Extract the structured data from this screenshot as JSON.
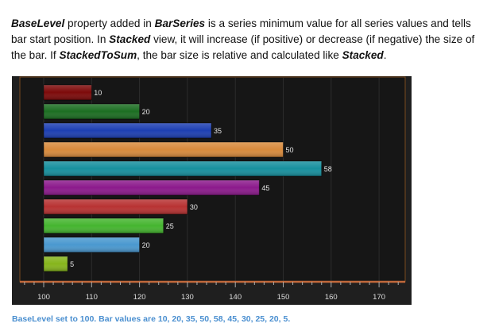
{
  "description": {
    "parts": [
      {
        "text": "BaseLevel",
        "em": true
      },
      {
        "text": " property added in ",
        "em": false
      },
      {
        "text": "BarSeries",
        "em": true
      },
      {
        "text": " is a series minimum value for all series values and tells bar start position. In ",
        "em": false
      },
      {
        "text": "Stacked",
        "em": true
      },
      {
        "text": " view, it will increase (if positive) or decrease (if negative) the size of the bar. If ",
        "em": false
      },
      {
        "text": "StackedToSum",
        "em": true
      },
      {
        "text": ", the bar size is relative and calculated like ",
        "em": false
      },
      {
        "text": "Stacked",
        "em": true
      },
      {
        "text": ".",
        "em": false
      }
    ]
  },
  "caption": "BaseLevel set to 100. Bar values are 10, 20, 35, 50, 58, 45, 30, 25, 20, 5.",
  "chart_data": {
    "type": "bar",
    "orientation": "horizontal",
    "base_level": 100,
    "values": [
      10,
      20,
      35,
      50,
      58,
      45,
      30,
      25,
      20,
      5
    ],
    "labels": [
      "10",
      "20",
      "35",
      "50",
      "58",
      "45",
      "30",
      "25",
      "20",
      "5"
    ],
    "colors": [
      "#7d0a0a",
      "#1c6e22",
      "#1d3fb2",
      "#d88a3c",
      "#17909e",
      "#8c1a8c",
      "#b83232",
      "#45b52f",
      "#4a98cf",
      "#86b51c"
    ],
    "xlim": [
      95,
      176
    ],
    "xticks": [
      100,
      110,
      120,
      130,
      140,
      150,
      160,
      170
    ],
    "xtick_labels": [
      "100",
      "110",
      "120",
      "130",
      "140",
      "150",
      "160",
      "170"
    ],
    "grid": true,
    "title": "",
    "xlabel": "",
    "ylabel": ""
  }
}
